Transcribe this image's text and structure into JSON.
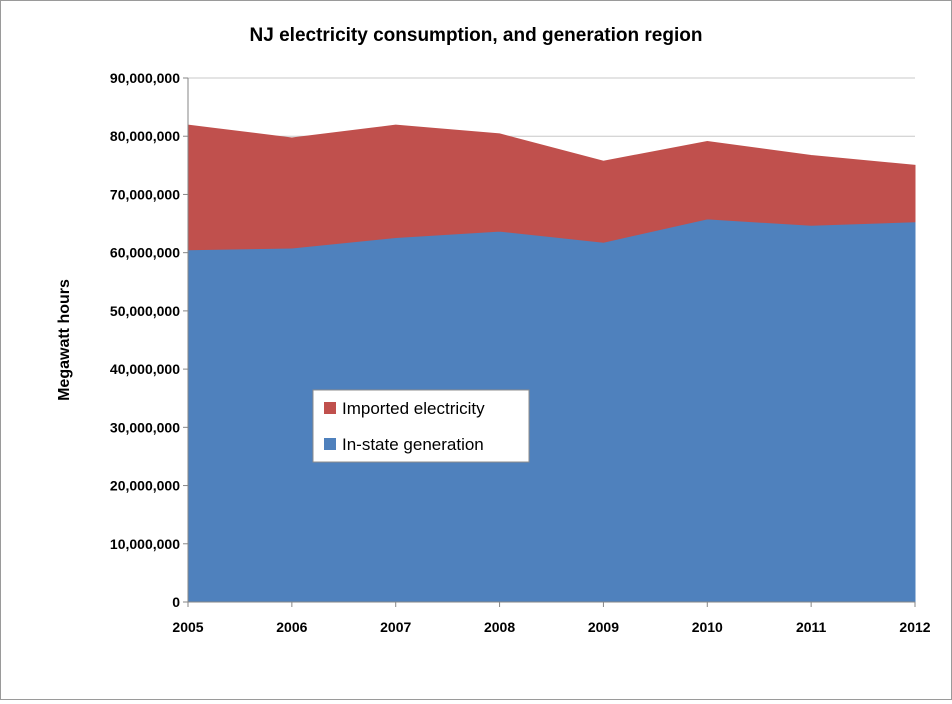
{
  "chart_data": {
    "type": "area",
    "stacked": true,
    "title": "NJ electricity consumption, and generation region",
    "xlabel": "",
    "ylabel": "Megawatt hours",
    "x": [
      "2005",
      "2006",
      "2007",
      "2008",
      "2009",
      "2010",
      "2011",
      "2012"
    ],
    "ylim": [
      0,
      90000000
    ],
    "yticks": [
      0,
      10000000,
      20000000,
      30000000,
      40000000,
      50000000,
      60000000,
      70000000,
      80000000,
      90000000
    ],
    "ytick_labels": [
      "0",
      "10,000,000",
      "20,000,000",
      "30,000,000",
      "40,000,000",
      "50,000,000",
      "60,000,000",
      "70,000,000",
      "80,000,000",
      "90,000,000"
    ],
    "grid": true,
    "legend_position": "center-left",
    "series": [
      {
        "name": "In-state generation",
        "color": "#4f81bd",
        "values": [
          60500000,
          60800000,
          62600000,
          63700000,
          61800000,
          65800000,
          64700000,
          65300000
        ]
      },
      {
        "name": "Imported electricity",
        "color": "#c0504d",
        "values": [
          21400000,
          18900000,
          19300000,
          16700000,
          13900000,
          13300000,
          12000000,
          9700000
        ]
      }
    ],
    "legend": {
      "entries": [
        "Imported electricity",
        "In-state generation"
      ]
    }
  }
}
